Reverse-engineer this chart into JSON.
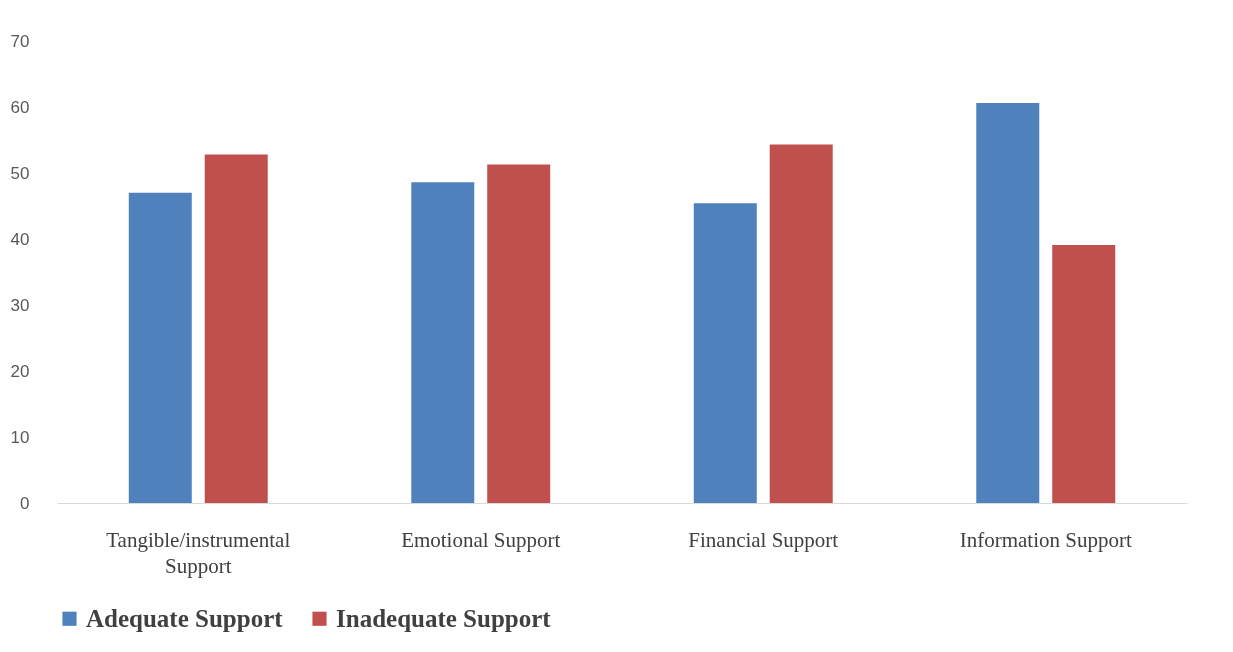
{
  "chart_data": {
    "type": "bar",
    "categories": [
      "Tangible/instrumental Support",
      "Emotional Support",
      "Financial Support",
      "Information Support"
    ],
    "series": [
      {
        "name": "Adequate Support",
        "color": "#4f81bd",
        "values": [
          47.0,
          48.6,
          45.4,
          60.6
        ]
      },
      {
        "name": "Inadequate Support",
        "color": "#c0504d",
        "values": [
          52.8,
          51.3,
          54.3,
          39.1
        ]
      }
    ],
    "ylim": [
      0,
      70
    ],
    "yticks": [
      0,
      10,
      20,
      30,
      40,
      50,
      60,
      70
    ],
    "grid": false,
    "legend": "bottom"
  }
}
